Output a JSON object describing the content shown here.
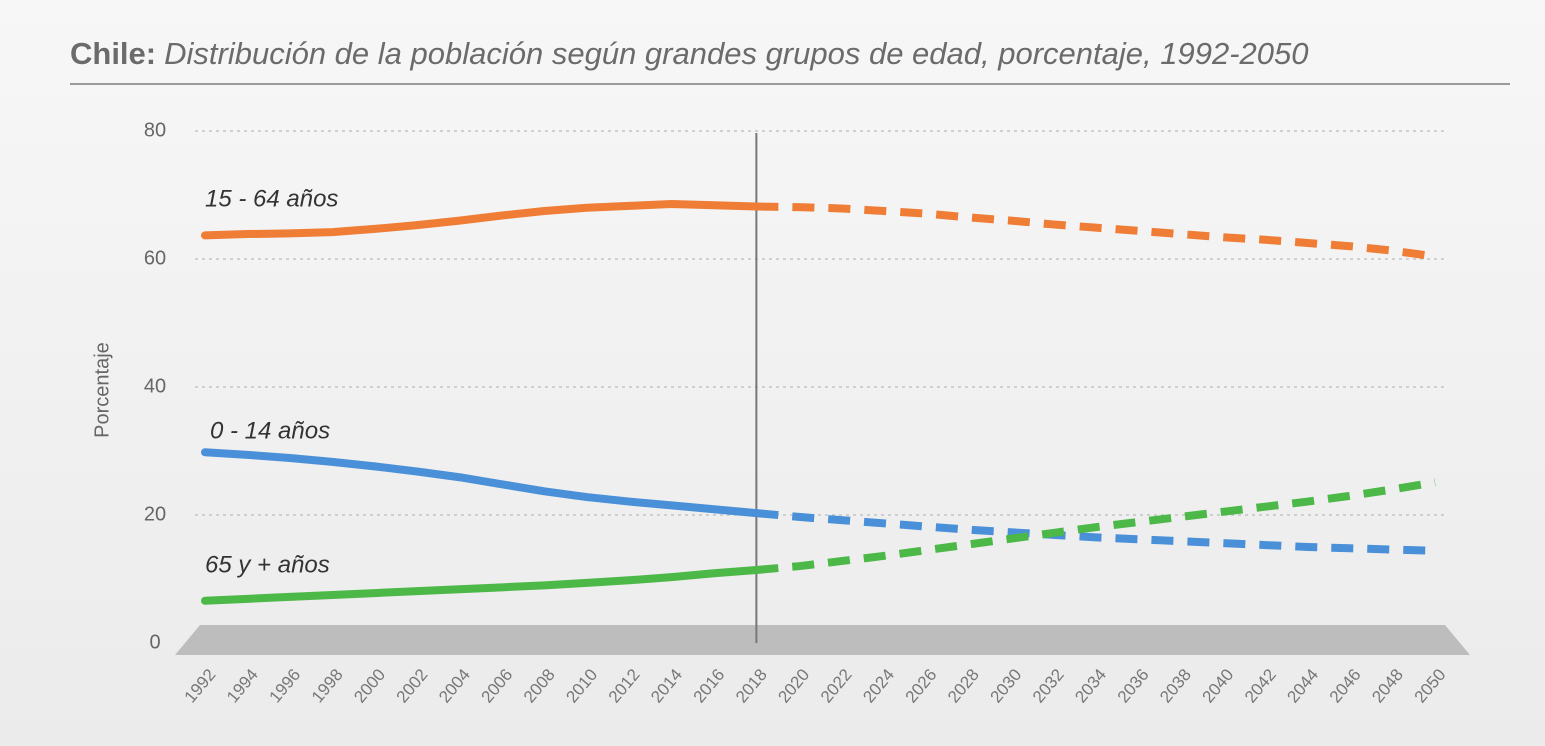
{
  "chart_data": {
    "type": "line",
    "title": "Chile:",
    "subtitle": "Distribución de la población según grandes grupos de edad, porcentaje, 1992-2050",
    "y_label": "Porcentaje",
    "x": [
      1992,
      1994,
      1996,
      1998,
      2000,
      2002,
      2004,
      2006,
      2008,
      2010,
      2012,
      2014,
      2016,
      2018,
      2020,
      2022,
      2024,
      2026,
      2028,
      2030,
      2032,
      2034,
      2036,
      2038,
      2040,
      2042,
      2044,
      2046,
      2048,
      2050
    ],
    "xlim": [
      1992,
      2050
    ],
    "ylim": [
      0,
      80
    ],
    "yticks": [
      0,
      20,
      40,
      60,
      80
    ],
    "grid": true,
    "projection_start": 2018,
    "series": [
      {
        "name": "15 - 64 años",
        "color": "#ef7d35",
        "values": [
          63.7,
          63.9,
          64.0,
          64.2,
          64.7,
          65.3,
          66.0,
          66.8,
          67.5,
          68.0,
          68.3,
          68.6,
          68.4,
          68.2,
          68.1,
          67.9,
          67.5,
          67.1,
          66.5,
          66.0,
          65.4,
          64.9,
          64.4,
          63.9,
          63.4,
          63.0,
          62.5,
          62.0,
          61.3,
          60.4
        ]
      },
      {
        "name": "0 - 14 años",
        "color": "#4a90d9",
        "values": [
          29.8,
          29.4,
          28.9,
          28.3,
          27.6,
          26.8,
          25.9,
          24.8,
          23.7,
          22.8,
          22.1,
          21.5,
          20.9,
          20.3,
          19.7,
          19.2,
          18.7,
          18.2,
          17.7,
          17.3,
          16.9,
          16.5,
          16.2,
          15.9,
          15.6,
          15.3,
          15.0,
          14.8,
          14.6,
          14.4
        ]
      },
      {
        "name": "65 y + años",
        "color": "#4cb848",
        "values": [
          6.6,
          6.9,
          7.2,
          7.5,
          7.8,
          8.1,
          8.4,
          8.7,
          9.0,
          9.4,
          9.8,
          10.3,
          10.9,
          11.4,
          12.0,
          12.8,
          13.6,
          14.5,
          15.4,
          16.3,
          17.2,
          18.1,
          18.9,
          19.7,
          20.5,
          21.3,
          22.1,
          23.0,
          24.0,
          25.1
        ]
      }
    ]
  }
}
